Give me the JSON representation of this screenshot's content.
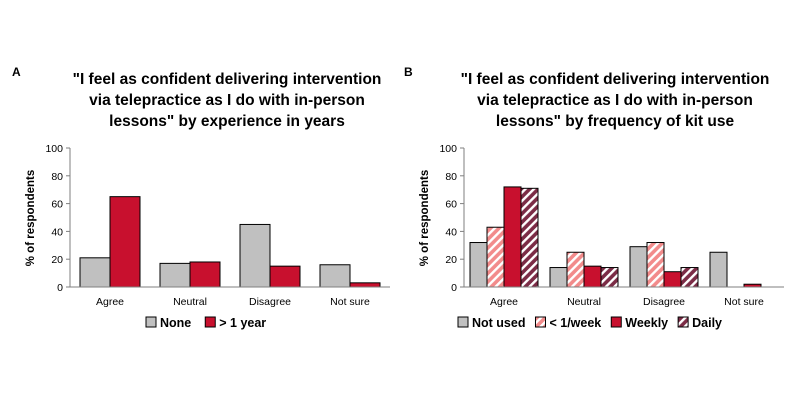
{
  "colors": {
    "gray": "#c0c0c0",
    "red": "#c8102e",
    "light_red": "#f28b8b",
    "dark_maroon": "#7b2c46",
    "axis": "#7f7f7f",
    "bar_stroke": "#000000"
  },
  "chart_data": [
    {
      "type": "bar",
      "panel_label": "A",
      "title_lines": [
        "\"I feel as confident delivering intervention",
        "via telepractice as I do with in-person",
        "lessons\" by experience in years"
      ],
      "ylabel": "% of respondents",
      "ylim": [
        0,
        100
      ],
      "yticks": [
        0,
        20,
        40,
        60,
        80,
        100
      ],
      "grid": false,
      "legend_position": "bottom",
      "categories": [
        "Agree",
        "Neutral",
        "Disagree",
        "Not sure"
      ],
      "series": [
        {
          "name": "None",
          "values": [
            21,
            17,
            45,
            16
          ],
          "fill": "gray"
        },
        {
          "name": "> 1 year",
          "values": [
            65,
            18,
            15,
            3
          ],
          "fill": "red"
        }
      ]
    },
    {
      "type": "bar",
      "panel_label": "B",
      "title_lines": [
        "\"I feel as confident delivering intervention",
        "via telepractice as I do with in-person",
        "lessons\" by frequency of kit use"
      ],
      "ylabel": "% of respondents",
      "ylim": [
        0,
        100
      ],
      "yticks": [
        0,
        20,
        40,
        60,
        80,
        100
      ],
      "grid": false,
      "legend_position": "bottom",
      "categories": [
        "Agree",
        "Neutral",
        "Disagree",
        "Not sure"
      ],
      "series": [
        {
          "name": "Not used",
          "values": [
            32,
            14,
            29,
            25
          ],
          "fill": "gray"
        },
        {
          "name": "< 1/week",
          "values": [
            43,
            25,
            32,
            0
          ],
          "fill": "hatch-light"
        },
        {
          "name": "Weekly",
          "values": [
            72,
            15,
            11,
            2
          ],
          "fill": "red"
        },
        {
          "name": "Daily",
          "values": [
            71,
            14,
            14,
            0
          ],
          "fill": "hatch-dark"
        }
      ]
    }
  ]
}
